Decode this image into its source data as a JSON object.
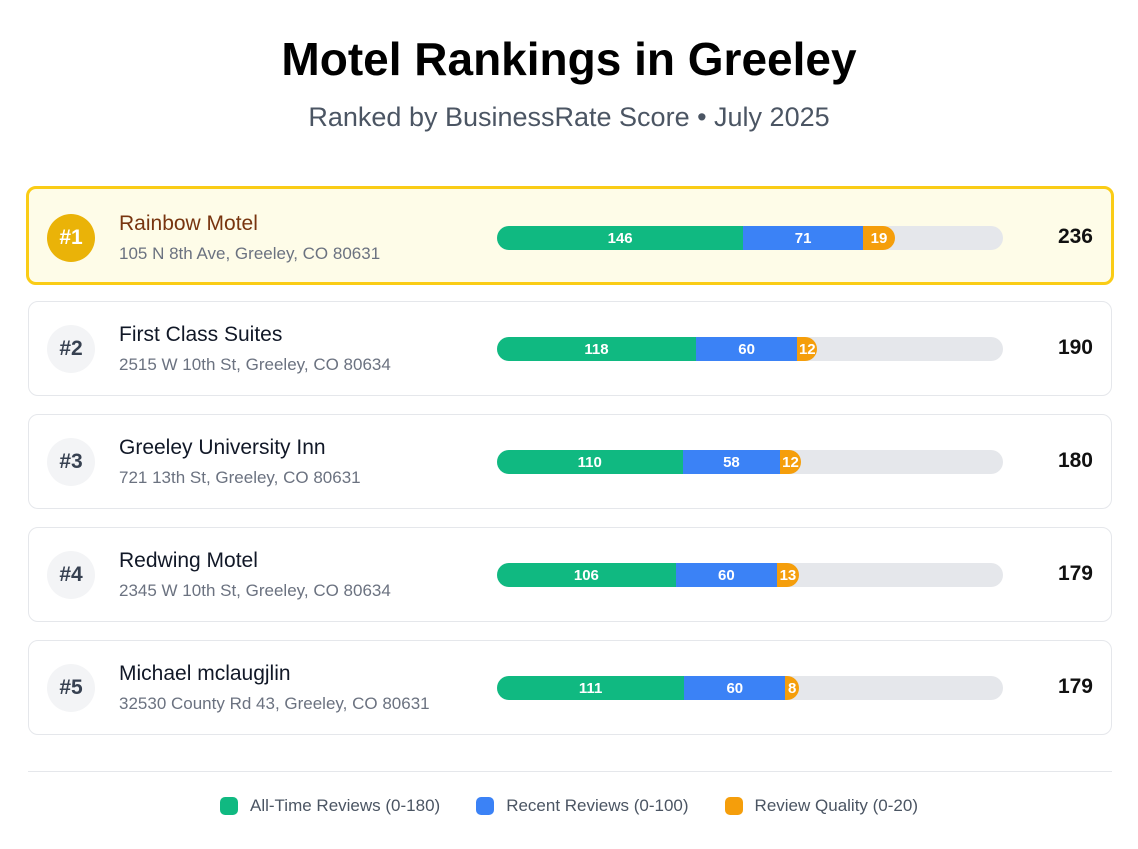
{
  "header": {
    "title": "Motel Rankings in Greeley",
    "subtitle": "Ranked by BusinessRate Score • July 2025"
  },
  "colors": {
    "all_time": "#10b981",
    "recent": "#3b82f6",
    "quality": "#f59e0b"
  },
  "chart_data": {
    "type": "bar",
    "stacked": true,
    "orientation": "horizontal",
    "xlim": [
      0,
      300
    ],
    "categories": [
      "Rainbow Motel",
      "First Class Suites",
      "Greeley University Inn",
      "Redwing Motel",
      "Michael mclaugjlin"
    ],
    "series": [
      {
        "name": "All-Time Reviews (0-180)",
        "values": [
          146,
          118,
          110,
          106,
          111
        ]
      },
      {
        "name": "Recent Reviews (0-100)",
        "values": [
          71,
          60,
          58,
          60,
          60
        ]
      },
      {
        "name": "Review Quality (0-20)",
        "values": [
          19,
          12,
          12,
          13,
          8
        ]
      }
    ],
    "totals": [
      236,
      190,
      180,
      179,
      179
    ],
    "legend": "bottom-center"
  },
  "rankings": [
    {
      "rank": "#1",
      "name": "Rainbow Motel",
      "address": "105 N 8th Ave, Greeley, CO 80631",
      "score": "236"
    },
    {
      "rank": "#2",
      "name": "First Class Suites",
      "address": "2515 W 10th St, Greeley, CO 80634",
      "score": "190"
    },
    {
      "rank": "#3",
      "name": "Greeley University Inn",
      "address": "721 13th St, Greeley, CO 80631",
      "score": "180"
    },
    {
      "rank": "#4",
      "name": "Redwing Motel",
      "address": "2345 W 10th St, Greeley, CO 80634",
      "score": "179"
    },
    {
      "rank": "#5",
      "name": "Michael mclaugjlin",
      "address": "32530 County Rd 43, Greeley, CO 80631",
      "score": "179"
    }
  ],
  "legend": [
    "All-Time Reviews (0-180)",
    "Recent Reviews (0-100)",
    "Review Quality (0-20)"
  ]
}
